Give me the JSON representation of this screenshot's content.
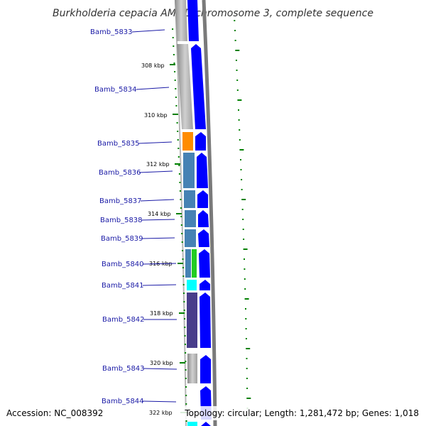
{
  "title": "Burkholderia cepacia AMMD chromosome 3, complete sequence",
  "footer": {
    "accession": "Accession: NC_008392",
    "summary": "Topology: circular; Length: 1,281,472 bp; Genes: 1,018"
  },
  "colors": {
    "backbone": "#808080",
    "forward_cds": "#0000ff",
    "gene_label": "#1a1aa6",
    "tick": "#008000",
    "orange": "#ff8c00",
    "steelblue": "#4682b4",
    "green": "#22cc22",
    "cyan": "#00ffff",
    "darkslateblue": "#483d8b",
    "gray": "#b0b0b0"
  },
  "genes": [
    {
      "label": "Bamb_5833"
    },
    {
      "label": "Bamb_5834"
    },
    {
      "label": "Bamb_5835"
    },
    {
      "label": "Bamb_5836"
    },
    {
      "label": "Bamb_5837"
    },
    {
      "label": "Bamb_5838"
    },
    {
      "label": "Bamb_5839"
    },
    {
      "label": "Bamb_5840"
    },
    {
      "label": "Bamb_5841"
    },
    {
      "label": "Bamb_5842"
    },
    {
      "label": "Bamb_5843"
    },
    {
      "label": "Bamb_5844"
    }
  ],
  "ticks": [
    {
      "label": "308 kbp"
    },
    {
      "label": "310 kbp"
    },
    {
      "label": "312 kbp"
    },
    {
      "label": "314 kbp"
    },
    {
      "label": "316 kbp"
    },
    {
      "label": "318 kbp"
    },
    {
      "label": "320 kbp"
    },
    {
      "label": "322 kbp"
    }
  ]
}
